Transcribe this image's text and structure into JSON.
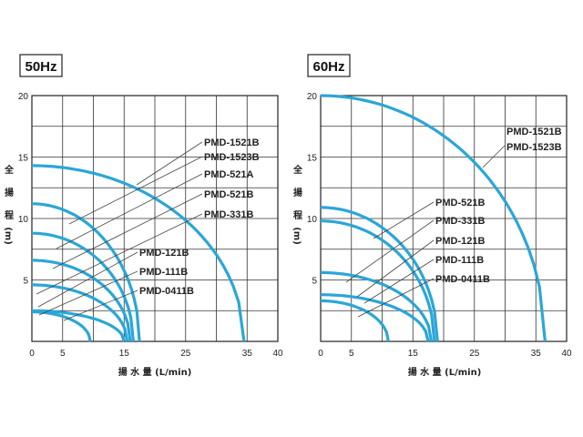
{
  "chart_data": [
    {
      "type": "line",
      "title": "50Hz",
      "xlabel": "揚 水 量 (L/min)",
      "ylabel_chars": [
        "全",
        "揚",
        "程"
      ],
      "ylabel_unit": "(m)",
      "xlim": [
        0,
        40
      ],
      "ylim": [
        0,
        20
      ],
      "x_ticks": [
        0,
        5,
        15,
        25,
        35,
        40
      ],
      "y_ticks": [
        5,
        10,
        15,
        20
      ],
      "grid": true,
      "series": [
        {
          "name": "PMD-1521B / PMD-1523B",
          "shutoff_head": 14.3,
          "max_flow": 34.5
        },
        {
          "name": "PMD-521A",
          "shutoff_head": 11.2,
          "max_flow": 17.5
        },
        {
          "name": "PMD-521B",
          "shutoff_head": 8.8,
          "max_flow": 16.5
        },
        {
          "name": "PMD-331B",
          "shutoff_head": 6.6,
          "max_flow": 16.0
        },
        {
          "name": "PMD-121B",
          "shutoff_head": 4.6,
          "max_flow": 15.5
        },
        {
          "name": "PMD-111B",
          "shutoff_head": 2.5,
          "max_flow": 15.0
        },
        {
          "name": "PMD-0411B",
          "shutoff_head": 2.4,
          "max_flow": 9.5
        }
      ],
      "labels": [
        "PMD-1521B",
        "PMD-1523B",
        "PMD-521A",
        "PMD-521B",
        "PMD-331B",
        "PMD-121B",
        "PMD-111B",
        "PMD-0411B"
      ]
    },
    {
      "type": "line",
      "title": "60Hz",
      "xlabel": "揚 水 量 (L/min)",
      "ylabel_chars": [
        "全",
        "揚",
        "程"
      ],
      "ylabel_unit": "(m)",
      "xlim": [
        0,
        40
      ],
      "ylim": [
        0,
        20
      ],
      "x_ticks": [
        0,
        5,
        15,
        25,
        35,
        40
      ],
      "y_ticks": [
        5,
        10,
        15,
        20
      ],
      "grid": true,
      "series": [
        {
          "name": "PMD-1521B / PMD-1523B",
          "shutoff_head": 20.0,
          "max_flow": 36.5
        },
        {
          "name": "PMD-521B",
          "shutoff_head": 10.9,
          "max_flow": 19.0
        },
        {
          "name": "PMD-331B",
          "shutoff_head": 9.8,
          "max_flow": 18.5
        },
        {
          "name": "PMD-121B",
          "shutoff_head": 5.6,
          "max_flow": 18.0
        },
        {
          "name": "PMD-111B",
          "shutoff_head": 3.8,
          "max_flow": 17.5
        },
        {
          "name": "PMD-0411B",
          "shutoff_head": 3.3,
          "max_flow": 11.0
        }
      ],
      "labels": [
        "PMD-1521B",
        "PMD-1523B",
        "PMD-521B",
        "PMD-331B",
        "PMD-121B",
        "PMD-111B",
        "PMD-0411B"
      ]
    }
  ],
  "colors": {
    "curve": "#2aa6d8"
  }
}
